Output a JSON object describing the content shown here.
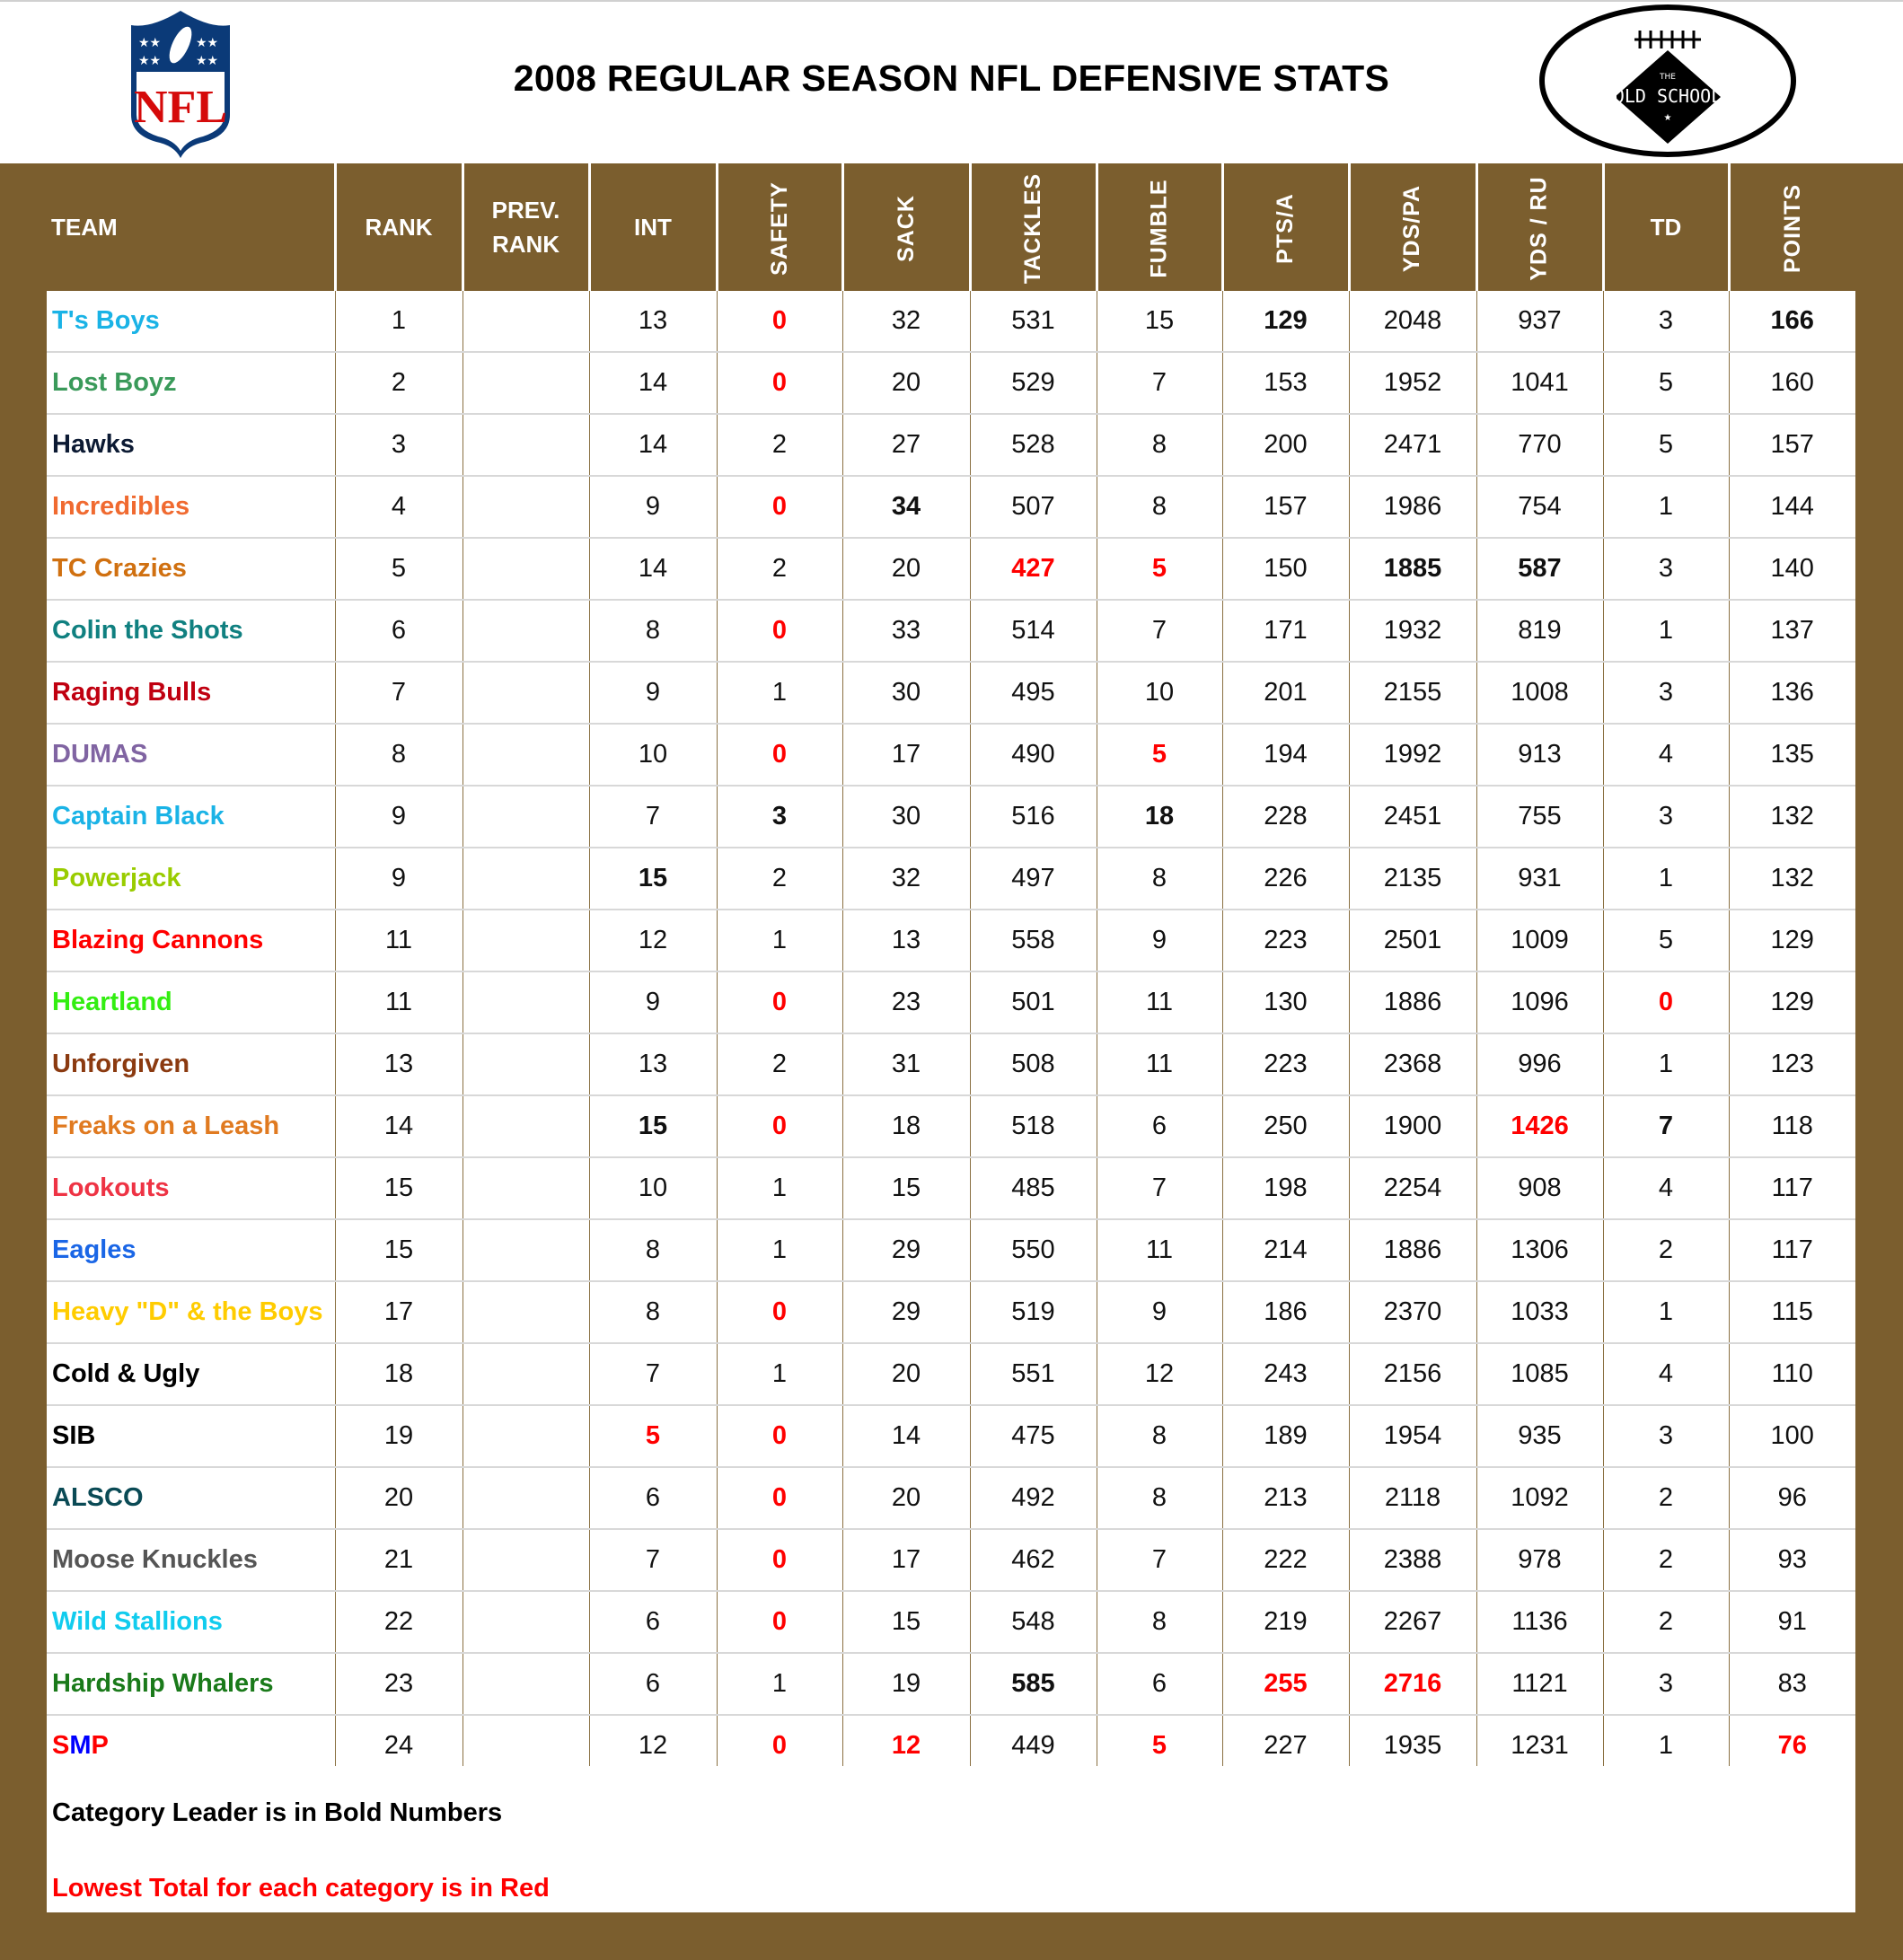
{
  "header": {
    "title": "2008 REGULAR SEASON NFL DEFENSIVE STATS",
    "left_logo": "nfl-shield-logo",
    "right_logo": "old-school-football-logo",
    "right_logo_text": "THE OLD SCHOOL"
  },
  "columns": [
    "TEAM",
    "RANK",
    "PREV. RANK",
    "INT",
    "SAFETY",
    "SACK",
    "TACKLES",
    "FUMBLE",
    "PTS/A",
    "YDS/PA",
    "YDS / RU",
    "TD",
    "POINTS"
  ],
  "colors": {
    "frame": "#7b5e2e",
    "leader": "#000000",
    "lowest": "#ff0000"
  },
  "rows": [
    {
      "team": "T's Boys",
      "color": "#1ab3e6",
      "rank": "1",
      "prev": "",
      "int": "13",
      "safety": "0",
      "sack": "32",
      "tackles": "531",
      "fumble": "15",
      "ptsa": "129",
      "ydspa": "2048",
      "ydsru": "937",
      "td": "3",
      "points": "166"
    },
    {
      "team": "Lost Boyz",
      "color": "#3a9a5a",
      "rank": "2",
      "prev": "",
      "int": "14",
      "safety": "0",
      "sack": "20",
      "tackles": "529",
      "fumble": "7",
      "ptsa": "153",
      "ydspa": "1952",
      "ydsru": "1041",
      "td": "5",
      "points": "160"
    },
    {
      "team": "Hawks",
      "color": "#0c1a33",
      "rank": "3",
      "prev": "",
      "int": "14",
      "safety": "2",
      "sack": "27",
      "tackles": "528",
      "fumble": "8",
      "ptsa": "200",
      "ydspa": "2471",
      "ydsru": "770",
      "td": "5",
      "points": "157"
    },
    {
      "team": "Incredibles",
      "color": "#f06a30",
      "rank": "4",
      "prev": "",
      "int": "9",
      "safety": "0",
      "sack": "34",
      "tackles": "507",
      "fumble": "8",
      "ptsa": "157",
      "ydspa": "1986",
      "ydsru": "754",
      "td": "1",
      "points": "144"
    },
    {
      "team": "TC Crazies",
      "color": "#d07010",
      "rank": "5",
      "prev": "",
      "int": "14",
      "safety": "2",
      "sack": "20",
      "tackles": "427",
      "fumble": "5",
      "ptsa": "150",
      "ydspa": "1885",
      "ydsru": "587",
      "td": "3",
      "points": "140"
    },
    {
      "team": "Colin the Shots",
      "color": "#108080",
      "rank": "6",
      "prev": "",
      "int": "8",
      "safety": "0",
      "sack": "33",
      "tackles": "514",
      "fumble": "7",
      "ptsa": "171",
      "ydspa": "1932",
      "ydsru": "819",
      "td": "1",
      "points": "137"
    },
    {
      "team": "Raging Bulls",
      "color": "#c00010",
      "rank": "7",
      "prev": "",
      "int": "9",
      "safety": "1",
      "sack": "30",
      "tackles": "495",
      "fumble": "10",
      "ptsa": "201",
      "ydspa": "2155",
      "ydsru": "1008",
      "td": "3",
      "points": "136"
    },
    {
      "team": "DUMAS",
      "color": "#8064a2",
      "rank": "8",
      "prev": "",
      "int": "10",
      "safety": "0",
      "sack": "17",
      "tackles": "490",
      "fumble": "5",
      "ptsa": "194",
      "ydspa": "1992",
      "ydsru": "913",
      "td": "4",
      "points": "135"
    },
    {
      "team": "Captain Black",
      "color": "#1ab3e6",
      "rank": "9",
      "prev": "",
      "int": "7",
      "safety": "3",
      "sack": "30",
      "tackles": "516",
      "fumble": "18",
      "ptsa": "228",
      "ydspa": "2451",
      "ydsru": "755",
      "td": "3",
      "points": "132"
    },
    {
      "team": "Powerjack",
      "color": "#99cc00",
      "rank": "9",
      "prev": "",
      "int": "15",
      "safety": "2",
      "sack": "32",
      "tackles": "497",
      "fumble": "8",
      "ptsa": "226",
      "ydspa": "2135",
      "ydsru": "931",
      "td": "1",
      "points": "132"
    },
    {
      "team": "Blazing Cannons",
      "color": "#ff0000",
      "rank": "11",
      "prev": "",
      "int": "12",
      "safety": "1",
      "sack": "13",
      "tackles": "558",
      "fumble": "9",
      "ptsa": "223",
      "ydspa": "2501",
      "ydsru": "1009",
      "td": "5",
      "points": "129"
    },
    {
      "team": "Heartland",
      "color": "#33ee11",
      "rank": "11",
      "prev": "",
      "int": "9",
      "safety": "0",
      "sack": "23",
      "tackles": "501",
      "fumble": "11",
      "ptsa": "130",
      "ydspa": "1886",
      "ydsru": "1096",
      "td": "0",
      "points": "129"
    },
    {
      "team": "Unforgiven",
      "color": "#8b3a10",
      "rank": "13",
      "prev": "",
      "int": "13",
      "safety": "2",
      "sack": "31",
      "tackles": "508",
      "fumble": "11",
      "ptsa": "223",
      "ydspa": "2368",
      "ydsru": "996",
      "td": "1",
      "points": "123"
    },
    {
      "team": "Freaks on a Leash",
      "color": "#e07a20",
      "rank": "14",
      "prev": "",
      "int": "15",
      "safety": "0",
      "sack": "18",
      "tackles": "518",
      "fumble": "6",
      "ptsa": "250",
      "ydspa": "1900",
      "ydsru": "1426",
      "td": "7",
      "points": "118"
    },
    {
      "team": "Lookouts",
      "color": "#ee3344",
      "rank": "15",
      "prev": "",
      "int": "10",
      "safety": "1",
      "sack": "15",
      "tackles": "485",
      "fumble": "7",
      "ptsa": "198",
      "ydspa": "2254",
      "ydsru": "908",
      "td": "4",
      "points": "117"
    },
    {
      "team": "Eagles",
      "color": "#1a66e6",
      "rank": "15",
      "prev": "",
      "int": "8",
      "safety": "1",
      "sack": "29",
      "tackles": "550",
      "fumble": "11",
      "ptsa": "214",
      "ydspa": "1886",
      "ydsru": "1306",
      "td": "2",
      "points": "117"
    },
    {
      "team": "Heavy \"D\" & the Boys",
      "color": "#ffcc00",
      "rank": "17",
      "prev": "",
      "int": "8",
      "safety": "0",
      "sack": "29",
      "tackles": "519",
      "fumble": "9",
      "ptsa": "186",
      "ydspa": "2370",
      "ydsru": "1033",
      "td": "1",
      "points": "115"
    },
    {
      "team": "Cold & Ugly",
      "color": "#000000",
      "rank": "18",
      "prev": "",
      "int": "7",
      "safety": "1",
      "sack": "20",
      "tackles": "551",
      "fumble": "12",
      "ptsa": "243",
      "ydspa": "2156",
      "ydsru": "1085",
      "td": "4",
      "points": "110"
    },
    {
      "team": "SIB",
      "color": "#000000",
      "rank": "19",
      "prev": "",
      "int": "5",
      "safety": "0",
      "sack": "14",
      "tackles": "475",
      "fumble": "8",
      "ptsa": "189",
      "ydspa": "1954",
      "ydsru": "935",
      "td": "3",
      "points": "100"
    },
    {
      "team": "ALSCO",
      "color": "#0a4a55",
      "rank": "20",
      "prev": "",
      "int": "6",
      "safety": "0",
      "sack": "20",
      "tackles": "492",
      "fumble": "8",
      "ptsa": "213",
      "ydspa": "2118",
      "ydsru": "1092",
      "td": "2",
      "points": "96"
    },
    {
      "team": "Moose Knuckles",
      "color": "#555555",
      "rank": "21",
      "prev": "",
      "int": "7",
      "safety": "0",
      "sack": "17",
      "tackles": "462",
      "fumble": "7",
      "ptsa": "222",
      "ydspa": "2388",
      "ydsru": "978",
      "td": "2",
      "points": "93"
    },
    {
      "team": "Wild Stallions",
      "color": "#11ccee",
      "rank": "22",
      "prev": "",
      "int": "6",
      "safety": "0",
      "sack": "15",
      "tackles": "548",
      "fumble": "8",
      "ptsa": "219",
      "ydspa": "2267",
      "ydsru": "1136",
      "td": "2",
      "points": "91"
    },
    {
      "team": "Hardship Whalers",
      "color": "#1a7a1a",
      "rank": "23",
      "prev": "",
      "int": "6",
      "safety": "1",
      "sack": "19",
      "tackles": "585",
      "fumble": "6",
      "ptsa": "255",
      "ydspa": "2716",
      "ydsru": "1121",
      "td": "3",
      "points": "83"
    },
    {
      "team": "SMP",
      "color": "#ff0000",
      "rank": "24",
      "prev": "",
      "int": "12",
      "safety": "0",
      "sack": "12",
      "tackles": "449",
      "fumble": "5",
      "ptsa": "227",
      "ydspa": "1935",
      "ydsru": "1231",
      "td": "1",
      "points": "76"
    }
  ],
  "leaders": {
    "0": [
      "ptsa",
      "points"
    ],
    "3": [
      "sack"
    ],
    "4": [
      "ydspa",
      "ydsru"
    ],
    "8": [
      "safety",
      "fumble"
    ],
    "9": [
      "int"
    ],
    "13": [
      "int",
      "td"
    ],
    "22": [
      "tackles"
    ]
  },
  "lowest": {
    "0": [
      "safety"
    ],
    "1": [
      "safety"
    ],
    "3": [
      "safety"
    ],
    "4": [
      "tackles",
      "fumble"
    ],
    "5": [
      "safety"
    ],
    "7": [
      "safety",
      "fumble"
    ],
    "11": [
      "safety",
      "td"
    ],
    "13": [
      "safety",
      "ydsru"
    ],
    "16": [
      "safety"
    ],
    "18": [
      "int",
      "safety"
    ],
    "19": [
      "safety"
    ],
    "20": [
      "safety"
    ],
    "21": [
      "safety"
    ],
    "22": [
      "ptsa",
      "ydspa"
    ],
    "23": [
      "safety",
      "sack",
      "fumble",
      "points"
    ]
  },
  "legend": {
    "bold_note": "Category Leader is in Bold Numbers",
    "red_note": "Lowest Total for each category is in Red"
  }
}
